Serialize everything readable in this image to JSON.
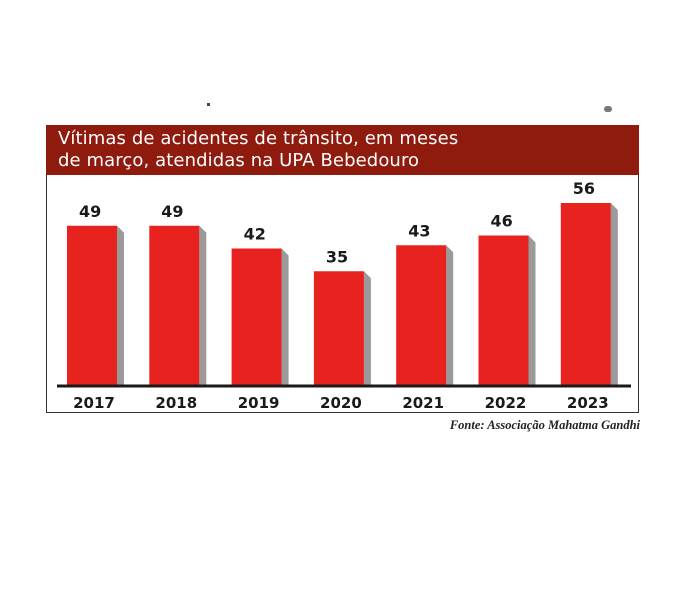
{
  "chart_data": {
    "type": "bar",
    "title_lines": [
      "Vítimas de acidentes de trânsito, em meses",
      "de março, atendidas na UPA Bebedouro"
    ],
    "categories": [
      "2017",
      "2018",
      "2019",
      "2020",
      "2021",
      "2022",
      "2023"
    ],
    "values": [
      49,
      49,
      42,
      35,
      43,
      46,
      56
    ],
    "xlabel": "",
    "ylabel": "",
    "ylim": [
      0,
      56
    ],
    "grid": false,
    "legend": "none",
    "source": "Fonte: Associação Mahatma Gandhi",
    "colors": {
      "bar": "#e8231f",
      "bar_shadow": "#9a9a9a",
      "title_bg": "#8e1b0e",
      "title_text": "#ffffff",
      "axis": "#1a1a1a"
    }
  }
}
